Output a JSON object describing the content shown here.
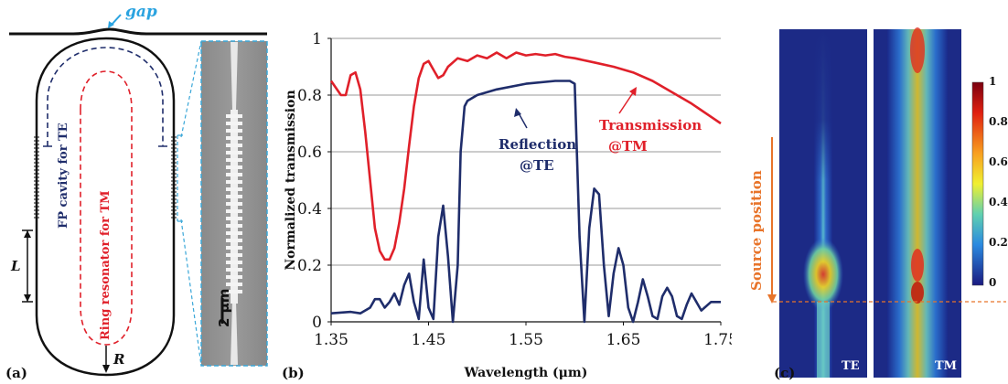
{
  "panel_a": {
    "label": "(a)",
    "gap_label": "gap",
    "fp_cavity_label": "FP cavity for TE",
    "ring_label": "Ring resonator for TM",
    "length_label": "L",
    "radius_label": "R",
    "scalebar_label": "2 μm",
    "colors": {
      "waveguide": "#111111",
      "fp_cavity": "#1f2d6b",
      "ring": "#e0202a",
      "inset_frame": "#3aa7d8",
      "gap_arrow": "#2aa3e0"
    }
  },
  "panel_b": {
    "label": "(b)"
  },
  "panel_c": {
    "label": "(c)",
    "source_label": "Source position",
    "te_label": "TE",
    "tm_label": "TM",
    "colorbar_ticks": [
      "1",
      "0.8",
      "0.6",
      "0.4",
      "0.2",
      "0"
    ],
    "source_color": "#e8742a"
  },
  "chart_data": {
    "type": "line",
    "title": "",
    "xlabel": "Wavelength (μm)",
    "ylabel": "Normalized transmission",
    "xlim": [
      1.35,
      1.75
    ],
    "ylim": [
      0,
      1
    ],
    "x_ticks": [
      "1.35",
      "1.45",
      "1.55",
      "1.65",
      "1.75"
    ],
    "y_ticks": [
      "0",
      "0.2",
      "0.4",
      "0.6",
      "0.8",
      "1"
    ],
    "grid": "horizontal",
    "annotations": [
      {
        "text": "Reflection",
        "line2": "@TE",
        "color": "#1f2d6b"
      },
      {
        "text": "Transmission",
        "line2": "@TM",
        "color": "#e0202a"
      }
    ],
    "series": [
      {
        "name": "Transmission @TM",
        "color": "#e0202a",
        "x": [
          1.35,
          1.36,
          1.365,
          1.37,
          1.375,
          1.38,
          1.385,
          1.39,
          1.395,
          1.4,
          1.405,
          1.41,
          1.415,
          1.42,
          1.425,
          1.43,
          1.435,
          1.44,
          1.445,
          1.45,
          1.455,
          1.46,
          1.465,
          1.47,
          1.48,
          1.49,
          1.5,
          1.51,
          1.52,
          1.53,
          1.54,
          1.55,
          1.56,
          1.57,
          1.58,
          1.59,
          1.6,
          1.62,
          1.64,
          1.66,
          1.68,
          1.7,
          1.72,
          1.75
        ],
        "y": [
          0.85,
          0.8,
          0.8,
          0.87,
          0.88,
          0.82,
          0.67,
          0.5,
          0.33,
          0.25,
          0.22,
          0.22,
          0.26,
          0.35,
          0.47,
          0.62,
          0.76,
          0.86,
          0.91,
          0.92,
          0.89,
          0.86,
          0.87,
          0.9,
          0.93,
          0.92,
          0.94,
          0.93,
          0.95,
          0.93,
          0.95,
          0.94,
          0.945,
          0.94,
          0.945,
          0.935,
          0.93,
          0.915,
          0.9,
          0.88,
          0.85,
          0.81,
          0.77,
          0.7
        ]
      },
      {
        "name": "Reflection @TE",
        "color": "#1f2d6b",
        "x": [
          1.35,
          1.37,
          1.38,
          1.39,
          1.395,
          1.4,
          1.405,
          1.41,
          1.415,
          1.42,
          1.425,
          1.43,
          1.435,
          1.44,
          1.445,
          1.45,
          1.455,
          1.46,
          1.465,
          1.47,
          1.475,
          1.48,
          1.483,
          1.487,
          1.49,
          1.5,
          1.52,
          1.55,
          1.58,
          1.595,
          1.6,
          1.605,
          1.61,
          1.615,
          1.62,
          1.625,
          1.63,
          1.635,
          1.64,
          1.645,
          1.65,
          1.655,
          1.66,
          1.665,
          1.67,
          1.675,
          1.68,
          1.685,
          1.69,
          1.695,
          1.7,
          1.705,
          1.71,
          1.715,
          1.72,
          1.73,
          1.74,
          1.75
        ],
        "y": [
          0.03,
          0.035,
          0.03,
          0.05,
          0.08,
          0.08,
          0.05,
          0.07,
          0.1,
          0.06,
          0.13,
          0.17,
          0.07,
          0.01,
          0.22,
          0.05,
          0.01,
          0.3,
          0.41,
          0.23,
          0.0,
          0.2,
          0.6,
          0.76,
          0.78,
          0.8,
          0.82,
          0.84,
          0.85,
          0.85,
          0.84,
          0.3,
          0.0,
          0.33,
          0.47,
          0.45,
          0.2,
          0.02,
          0.17,
          0.26,
          0.2,
          0.05,
          0.0,
          0.07,
          0.15,
          0.09,
          0.02,
          0.01,
          0.09,
          0.12,
          0.09,
          0.02,
          0.01,
          0.06,
          0.1,
          0.04,
          0.07,
          0.07
        ]
      }
    ]
  }
}
